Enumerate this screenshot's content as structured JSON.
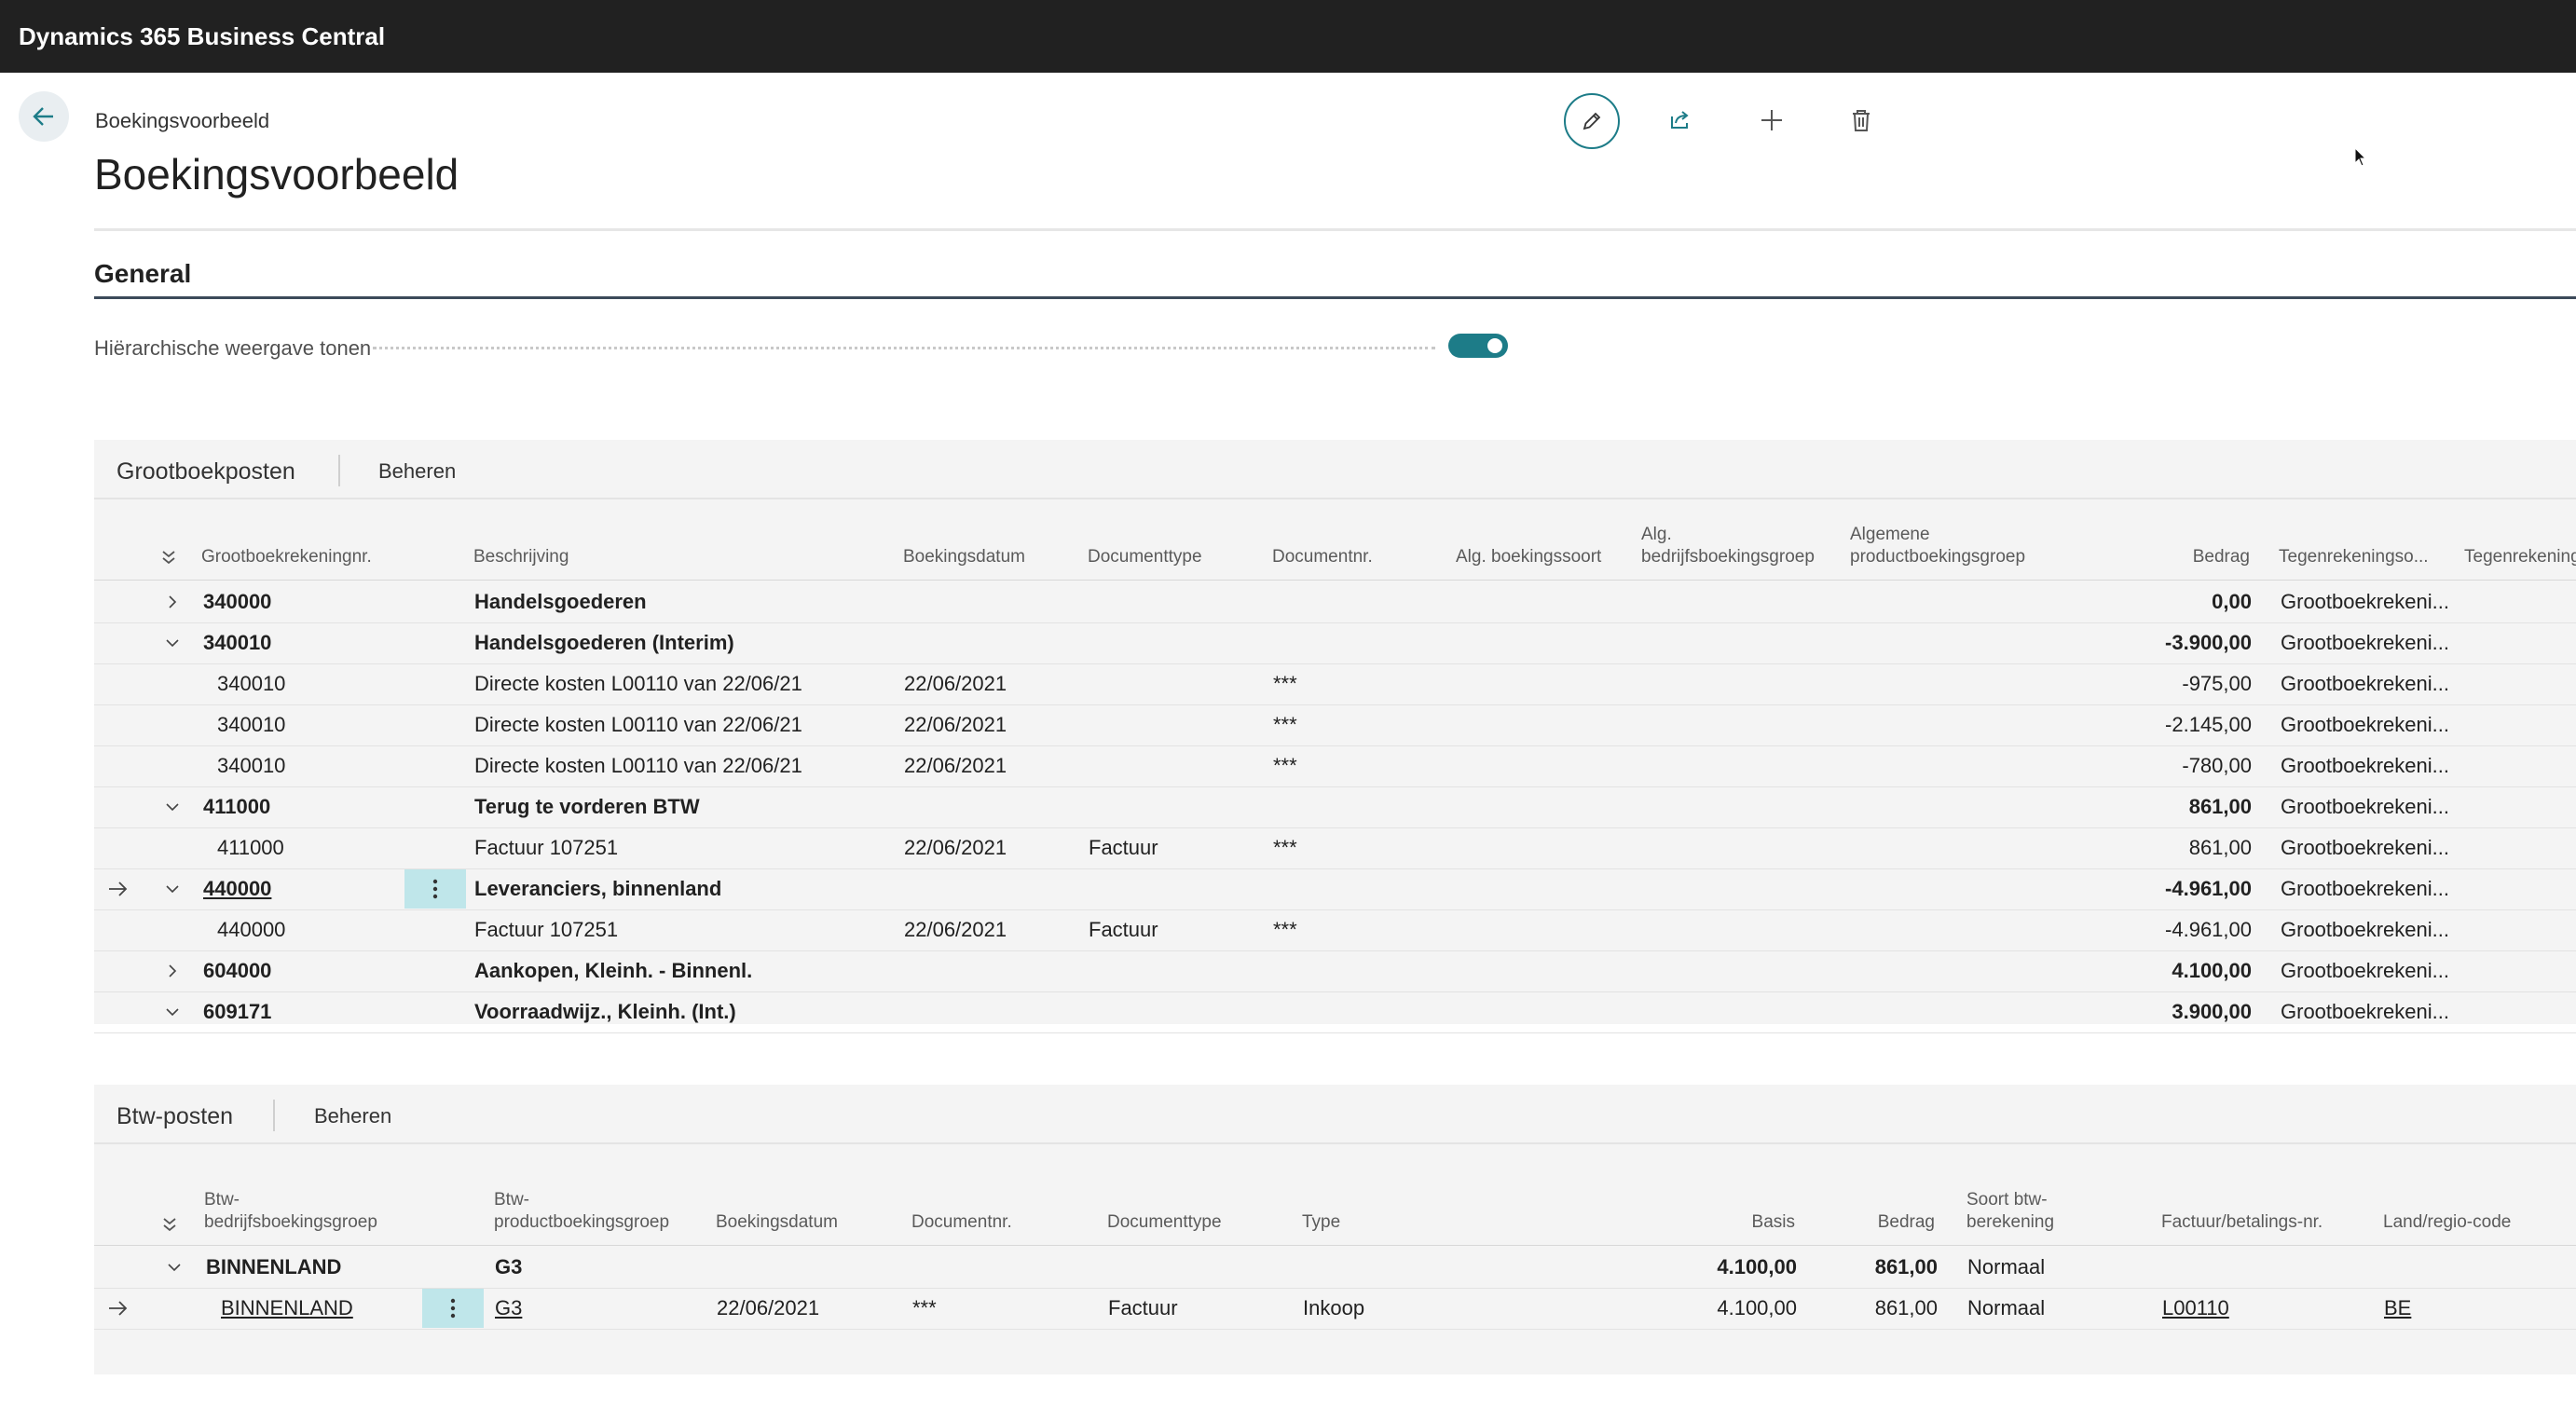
{
  "app": {
    "title": "Dynamics 365 Business Central"
  },
  "page": {
    "breadcrumb": "Boekingsvoorbeeld",
    "title": "Boekingsvoorbeeld"
  },
  "toolbar": {
    "icons": [
      "edit-icon",
      "share-icon",
      "new-icon",
      "delete-icon"
    ]
  },
  "general": {
    "title": "General",
    "toggle_label": "Hiërarchische weergave tonen",
    "toggle_on": true
  },
  "colors": {
    "accent": "#1d7c88",
    "topbar": "#212121",
    "selected_action": "#bfe6ea"
  },
  "gl": {
    "title": "Grootboekposten",
    "manage": "Beheren",
    "headers": {
      "account": "Grootboekrekeningnr.",
      "description": "Beschrijving",
      "posting_date": "Boekingsdatum",
      "doc_type": "Documenttype",
      "doc_no": "Documentnr.",
      "gen_posting_type_1": "Alg.",
      "gen_posting_type_2": "boekingssoort",
      "gen_bus_group_1": "Alg.",
      "gen_bus_group_2": "bedrijfsboekingsgroep",
      "gen_prod_group_1": "Algemene",
      "gen_prod_group_2": "productboekingsgroep",
      "amount": "Bedrag",
      "bal_type": "Tegenrekeningso...",
      "bal_account": "Tegenrekening"
    },
    "rows": [
      {
        "account": "340000",
        "description": "Handelsgoederen",
        "date": "",
        "doc_type": "",
        "doc_no": "",
        "amount": "0,00",
        "bal": "Grootboekrekeni...",
        "group": true,
        "expanded": false
      },
      {
        "account": "340010",
        "description": "Handelsgoederen (Interim)",
        "date": "",
        "doc_type": "",
        "doc_no": "",
        "amount": "-3.900,00",
        "bal": "Grootboekrekeni...",
        "group": true,
        "expanded": true
      },
      {
        "account": "340010",
        "description": "Directe kosten L00110 van 22/06/21",
        "date": "22/06/2021",
        "doc_type": "",
        "doc_no": "***",
        "amount": "-975,00",
        "bal": "Grootboekrekeni...",
        "group": false
      },
      {
        "account": "340010",
        "description": "Directe kosten L00110 van 22/06/21",
        "date": "22/06/2021",
        "doc_type": "",
        "doc_no": "***",
        "amount": "-2.145,00",
        "bal": "Grootboekrekeni...",
        "group": false
      },
      {
        "account": "340010",
        "description": "Directe kosten L00110 van 22/06/21",
        "date": "22/06/2021",
        "doc_type": "",
        "doc_no": "***",
        "amount": "-780,00",
        "bal": "Grootboekrekeni...",
        "group": false
      },
      {
        "account": "411000",
        "description": "Terug te vorderen BTW",
        "date": "",
        "doc_type": "",
        "doc_no": "",
        "amount": "861,00",
        "bal": "Grootboekrekeni...",
        "group": true,
        "expanded": true
      },
      {
        "account": "411000",
        "description": "Factuur 107251",
        "date": "22/06/2021",
        "doc_type": "Factuur",
        "doc_no": "***",
        "amount": "861,00",
        "bal": "Grootboekrekeni...",
        "group": false
      },
      {
        "account": "440000",
        "description": "Leveranciers, binnenland",
        "date": "",
        "doc_type": "",
        "doc_no": "",
        "amount": "-4.961,00",
        "bal": "Grootboekrekeni...",
        "group": true,
        "expanded": true,
        "selected": true
      },
      {
        "account": "440000",
        "description": "Factuur 107251",
        "date": "22/06/2021",
        "doc_type": "Factuur",
        "doc_no": "***",
        "amount": "-4.961,00",
        "bal": "Grootboekrekeni...",
        "group": false
      },
      {
        "account": "604000",
        "description": "Aankopen, Kleinh. - Binnenl.",
        "date": "",
        "doc_type": "",
        "doc_no": "",
        "amount": "4.100,00",
        "bal": "Grootboekrekeni...",
        "group": true,
        "expanded": false
      },
      {
        "account": "609171",
        "description": "Voorraadwijz., Kleinh. (Int.)",
        "date": "",
        "doc_type": "",
        "doc_no": "",
        "amount": "3.900,00",
        "bal": "Grootboekrekeni...",
        "group": true,
        "expanded": true
      }
    ]
  },
  "vat": {
    "title": "Btw-posten",
    "manage": "Beheren",
    "headers": {
      "bus_group_1": "Btw-",
      "bus_group_2": "bedrijfsboekingsgroep",
      "prod_group_1": "Btw-",
      "prod_group_2": "productboekingsgroep",
      "posting_date": "Boekingsdatum",
      "doc_no": "Documentnr.",
      "doc_type": "Documenttype",
      "type": "Type",
      "base": "Basis",
      "amount": "Bedrag",
      "calc_1": "Soort btw-",
      "calc_2": "berekening",
      "invoice_no": "Factuur/betalings-nr.",
      "country": "Land/regio-code"
    },
    "rows": [
      {
        "bus": "BINNENLAND",
        "prod": "G3",
        "date": "",
        "doc_no": "",
        "doc_type": "",
        "type": "",
        "base": "4.100,00",
        "amount": "861,00",
        "calc": "Normaal",
        "invoice": "",
        "country": "",
        "group": true
      },
      {
        "bus": "BINNENLAND",
        "prod": "G3",
        "date": "22/06/2021",
        "doc_no": "***",
        "doc_type": "Factuur",
        "type": "Inkoop",
        "base": "4.100,00",
        "amount": "861,00",
        "calc": "Normaal",
        "invoice": "L00110",
        "country": "BE",
        "group": false,
        "selected": true
      }
    ]
  }
}
